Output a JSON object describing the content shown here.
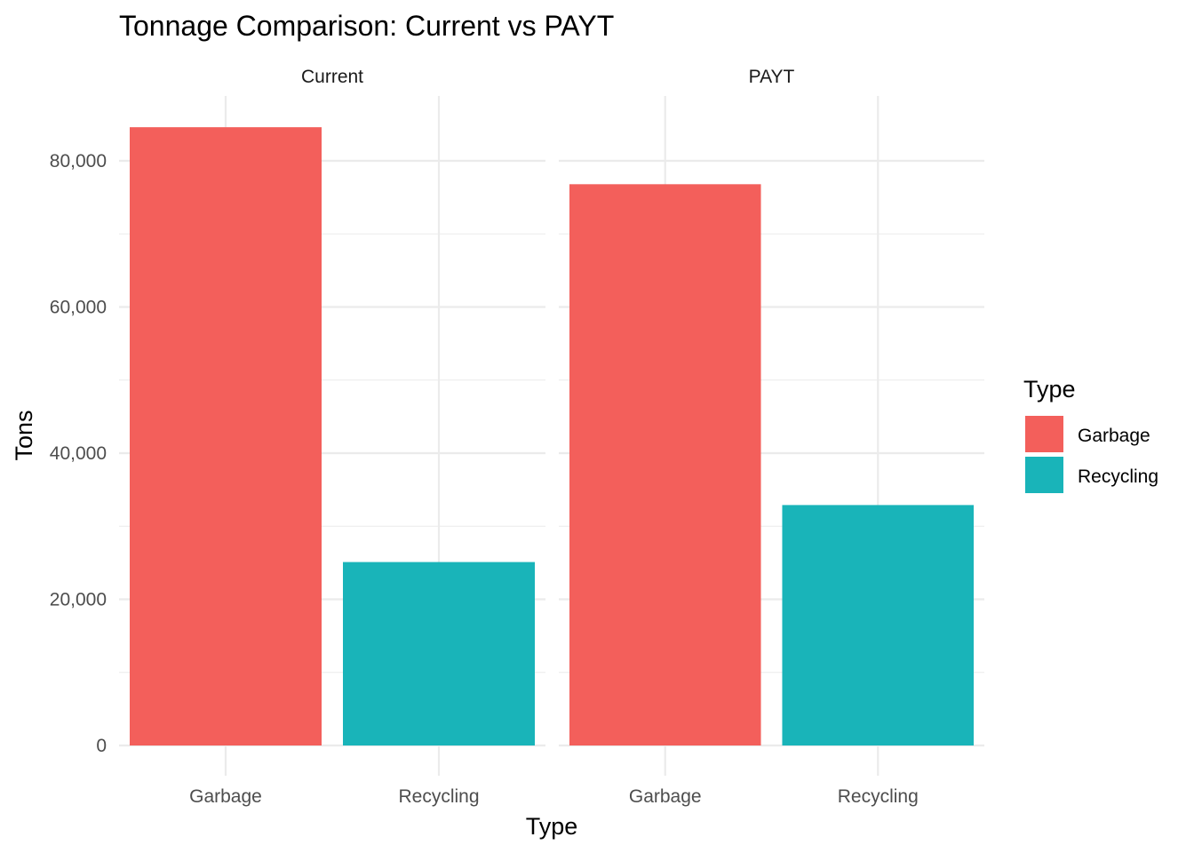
{
  "chart_data": {
    "type": "bar",
    "title": "Tonnage Comparison: Current vs PAYT",
    "xlabel": "Type",
    "ylabel": "Tons",
    "ylim": [
      0,
      88000
    ],
    "y_ticks": [
      0,
      20000,
      40000,
      60000,
      80000
    ],
    "y_tick_labels": [
      "0",
      "20,000",
      "40,000",
      "60,000",
      "80,000"
    ],
    "categories": [
      "Garbage",
      "Recycling"
    ],
    "facets": [
      {
        "label": "Current",
        "values": [
          84600,
          25100
        ]
      },
      {
        "label": "PAYT",
        "values": [
          76800,
          32900
        ]
      }
    ],
    "legend": {
      "title": "Type",
      "placement": "right",
      "entries": [
        {
          "label": "Garbage",
          "color": "#F8766D"
        },
        {
          "label": "Recycling",
          "color": "#00BFC4"
        }
      ]
    },
    "grid": true
  },
  "colors": {
    "Garbage": "#F35F5B",
    "Recycling": "#19B4B9"
  }
}
